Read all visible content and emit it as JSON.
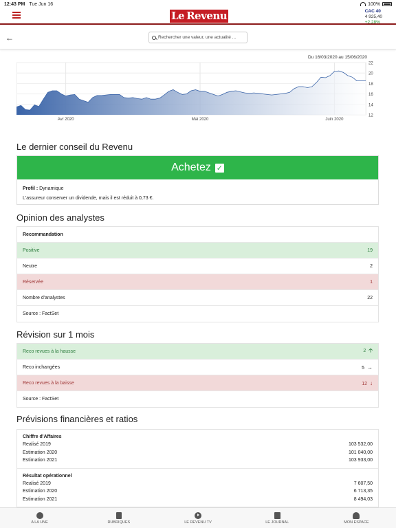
{
  "status": {
    "time": "12:43 PM",
    "date": "Tue Jun 16",
    "battery": "100%"
  },
  "header": {
    "logo_le": "Le",
    "logo_revenu": "Revenu",
    "index_name": "CAC 40",
    "index_value": "4 925,40",
    "index_change": "+2,28%"
  },
  "nav": {
    "search_placeholder": "Rechercher une valeur, une actualité ..."
  },
  "chart_data": {
    "type": "area",
    "title": "Du 16/03/2020 au 15/06/2020",
    "x_ticks": [
      "Avr 2020",
      "Mai 2020",
      "Juin 2020"
    ],
    "y_ticks": [
      12,
      14,
      16,
      18,
      20,
      22
    ],
    "ylim": [
      12,
      22
    ],
    "y_axis_position": "right",
    "grid": true,
    "values": [
      13.5,
      13.8,
      13.0,
      12.9,
      13.9,
      13.6,
      15.0,
      16.3,
      16.6,
      16.6,
      16.0,
      15.6,
      15.8,
      15.9,
      15.0,
      14.7,
      14.4,
      15.3,
      15.7,
      15.7,
      15.8,
      15.9,
      15.9,
      15.9,
      15.3,
      15.2,
      15.3,
      15.1,
      15.0,
      15.3,
      15.0,
      15.0,
      15.2,
      15.8,
      16.5,
      16.8,
      16.3,
      15.9,
      16.0,
      16.6,
      16.8,
      16.5,
      16.5,
      16.2,
      15.9,
      15.6,
      15.9,
      16.3,
      16.5,
      16.6,
      16.4,
      16.2,
      16.1,
      16.2,
      16.1,
      16.0,
      15.9,
      15.8,
      15.9,
      16.0,
      16.1,
      16.3,
      17.0,
      17.4,
      17.4,
      17.2,
      17.4,
      18.2,
      19.2,
      19.1,
      19.5,
      20.3,
      20.4,
      20.1,
      19.5,
      19.2,
      18.5,
      18.5,
      18.5
    ],
    "color": "#3a64a8"
  },
  "advice": {
    "title": "Le dernier conseil du Revenu",
    "verdict": "Achetez",
    "profile_label": "Profil :",
    "profile_value": "Dynamique",
    "text": "L'assureur conserver un dividende, mais il est réduit à 0,73 €."
  },
  "analysts": {
    "title": "Opinion des analystes",
    "header": "Recommandation",
    "rows": [
      {
        "label": "Positive",
        "value": "19"
      },
      {
        "label": "Neutre",
        "value": "2"
      },
      {
        "label": "Réservée",
        "value": "1"
      },
      {
        "label": "Nombre d'analystes",
        "value": "22"
      }
    ],
    "source": "Source : FactSet"
  },
  "revision": {
    "title": "Révision sur 1 mois",
    "rows": [
      {
        "label": "Reco revues à la hausse",
        "value": "2"
      },
      {
        "label": "Reco inchangées",
        "value": "5"
      },
      {
        "label": "Reco revues à la baisse",
        "value": "12"
      }
    ],
    "source": "Source : FactSet"
  },
  "financials": {
    "title": "Prévisions financières et ratios",
    "groups": [
      {
        "title": "Chiffre d'Affaires",
        "lines": [
          {
            "label": "Realisé 2019",
            "value": "103 532,00"
          },
          {
            "label": "Estimation 2020",
            "value": "101 040,00"
          },
          {
            "label": "Estimation 2021",
            "value": "103 933,00"
          }
        ]
      },
      {
        "title": "Résultat opérationnel",
        "lines": [
          {
            "label": "Realisé 2019",
            "value": "7 607,50"
          },
          {
            "label": "Estimation 2020",
            "value": "6 713,35"
          },
          {
            "label": "Estimation 2021",
            "value": "8 494,03"
          }
        ]
      }
    ]
  },
  "tabs": [
    {
      "label": "A LA UNE",
      "icon": "globe-icon"
    },
    {
      "label": "RUBRIQUES",
      "icon": "document-icon"
    },
    {
      "label": "LE REVENU TV",
      "icon": "play-icon"
    },
    {
      "label": "LE JOURNAL",
      "icon": "newspaper-icon"
    },
    {
      "label": "MON ESPACE",
      "icon": "user-icon"
    }
  ]
}
